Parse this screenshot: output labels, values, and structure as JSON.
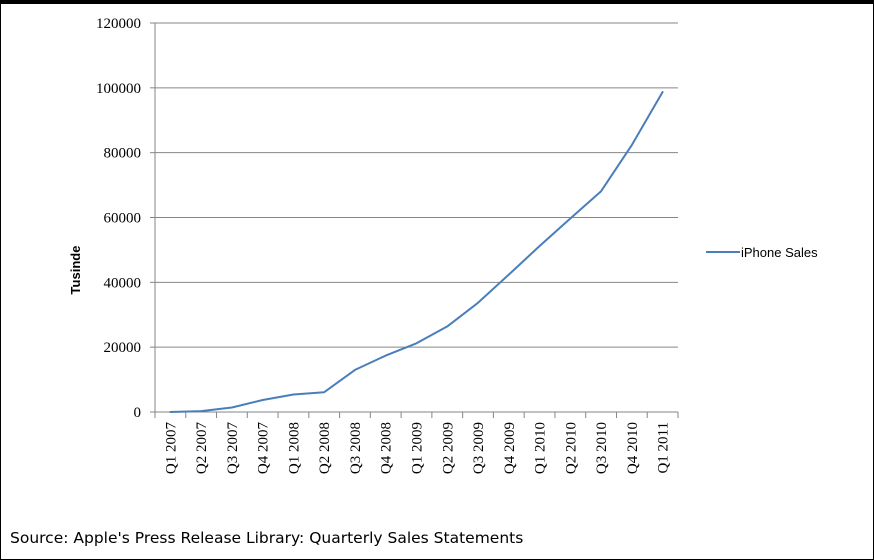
{
  "chart_data": {
    "type": "line",
    "ylabel": "Tusinde",
    "xlabel": "",
    "title": "",
    "categories": [
      "Q1 2007",
      "Q2 2007",
      "Q3 2007",
      "Q4 2007",
      "Q1 2008",
      "Q2 2008",
      "Q3 2008",
      "Q4 2008",
      "Q1 2009",
      "Q2 2009",
      "Q3 2009",
      "Q4 2009",
      "Q1 2010",
      "Q2 2010",
      "Q3 2010",
      "Q4 2010",
      "Q1 2011"
    ],
    "series": [
      {
        "name": "iPhone Sales",
        "color": "#4a7ebb",
        "values": [
          0,
          270,
          1389,
          3700,
          5400,
          6100,
          13000,
          17400,
          21200,
          26400,
          33700,
          42400,
          51200,
          59700,
          68100,
          82400,
          98700
        ]
      }
    ],
    "ylim": [
      0,
      120000
    ],
    "yticks": [
      0,
      20000,
      40000,
      60000,
      80000,
      100000,
      120000
    ],
    "grid": true,
    "legend": "right"
  },
  "source_text": "Source: Apple's Press Release Library: Quarterly Sales Statements"
}
